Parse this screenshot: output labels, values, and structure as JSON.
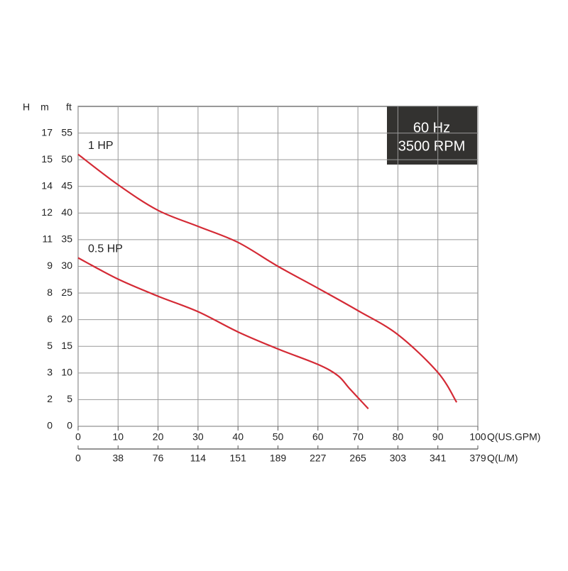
{
  "chart_data": {
    "type": "line",
    "y_axis_label": "ft",
    "y2_axis_label": "m",
    "y_axis_group_label": "H",
    "x_axis_label": "Q(US.GPM)",
    "x2_axis_label": "Q(L/M)",
    "annotations": [
      "60 Hz",
      "3500 RPM"
    ],
    "xlim": [
      0,
      100
    ],
    "xticks": [
      0,
      10,
      20,
      30,
      40,
      50,
      60,
      70,
      80,
      90,
      100
    ],
    "x2lim": [
      0,
      378.5
    ],
    "x2ticks": [
      0,
      {
        "value": 37.85,
        "label": "38"
      },
      {
        "value": 75.7,
        "label": "76"
      },
      {
        "value": 113.55,
        "label": "114"
      },
      {
        "value": 151.4,
        "label": "151"
      },
      {
        "value": 189.25,
        "label": "189"
      },
      {
        "value": 227.1,
        "label": "227"
      },
      {
        "value": 264.95,
        "label": "265"
      },
      {
        "value": 302.8,
        "label": "303"
      },
      {
        "value": 340.65,
        "label": "341"
      },
      {
        "value": 378.5,
        "label": "379"
      }
    ],
    "ylim": [
      0,
      60
    ],
    "yticks": [
      0,
      5,
      10,
      15,
      20,
      25,
      30,
      35,
      40,
      45,
      50,
      55
    ],
    "y2lim": [
      0,
      18.288
    ],
    "y2ticks": [
      0,
      {
        "value": 1.524,
        "label": "2"
      },
      {
        "value": 3.048,
        "label": "3"
      },
      {
        "value": 4.572,
        "label": "5"
      },
      {
        "value": 6.096,
        "label": "6"
      },
      {
        "value": 7.62,
        "label": "8"
      },
      {
        "value": 9.144,
        "label": "9"
      },
      {
        "value": 10.668,
        "label": "11"
      },
      {
        "value": 12.192,
        "label": "12"
      },
      {
        "value": 13.716,
        "label": "14"
      },
      {
        "value": 15.24,
        "label": "15"
      },
      {
        "value": 16.764,
        "label": "17"
      }
    ],
    "grid": true,
    "series": [
      {
        "name": "1 HP",
        "color": "#d42a35",
        "x": [
          0,
          10,
          20,
          30,
          40,
          50,
          60,
          70,
          80,
          90,
          94.7
        ],
        "values": [
          51,
          45.3,
          40.5,
          37.5,
          34.5,
          30,
          25.9,
          21.7,
          17.2,
          10.1,
          4.5
        ]
      },
      {
        "name": "0.5 HP",
        "color": "#d42a35",
        "x": [
          0,
          10,
          20,
          30,
          40,
          50,
          60,
          65,
          68,
          72.6
        ],
        "values": [
          31.6,
          27.6,
          24.4,
          21.5,
          17.7,
          14.5,
          11.6,
          9.5,
          7,
          3.3
        ]
      }
    ]
  }
}
